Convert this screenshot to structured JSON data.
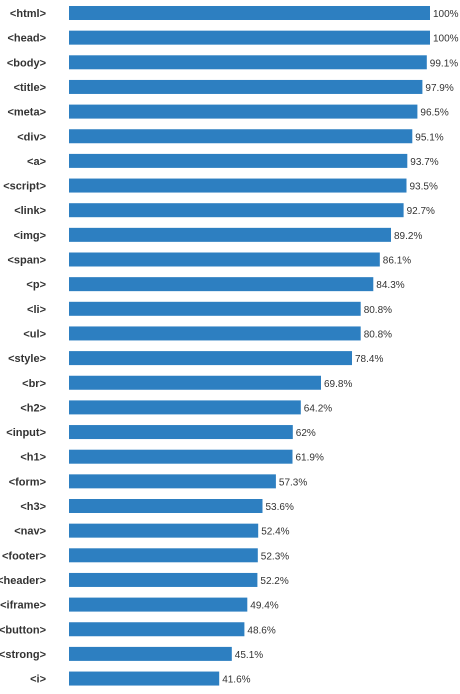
{
  "colors": {
    "bar": "#2d7fc1",
    "text": "#333333",
    "background": "#ffffff"
  },
  "chart_data": {
    "type": "bar",
    "orientation": "horizontal",
    "title": "",
    "xlabel": "",
    "ylabel": "",
    "xlim": [
      0,
      100
    ],
    "grid": false,
    "categories": [
      "<html>",
      "<head>",
      "<body>",
      "<title>",
      "<meta>",
      "<div>",
      "<a>",
      "<script>",
      "<link>",
      "<img>",
      "<span>",
      "<p>",
      "<li>",
      "<ul>",
      "<style>",
      "<br>",
      "<h2>",
      "<input>",
      "<h1>",
      "<form>",
      "<h3>",
      "<nav>",
      "<footer>",
      "<header>",
      "<iframe>",
      "<button>",
      "<strong>",
      "<i>"
    ],
    "values": [
      100,
      100,
      99.1,
      97.9,
      96.5,
      95.1,
      93.7,
      93.5,
      92.7,
      89.2,
      86.1,
      84.3,
      80.8,
      80.8,
      78.4,
      69.8,
      64.2,
      62,
      61.9,
      57.3,
      53.6,
      52.4,
      52.3,
      52.2,
      49.4,
      48.6,
      45.1,
      41.6
    ],
    "value_labels": [
      "100%",
      "100%",
      "99.1%",
      "97.9%",
      "96.5%",
      "95.1%",
      "93.7%",
      "93.5%",
      "92.7%",
      "89.2%",
      "86.1%",
      "84.3%",
      "80.8%",
      "80.8%",
      "78.4%",
      "69.8%",
      "64.2%",
      "62%",
      "61.9%",
      "57.3%",
      "53.6%",
      "52.4%",
      "52.3%",
      "52.2%",
      "49.4%",
      "48.6%",
      "45.1%",
      "41.6%"
    ]
  }
}
